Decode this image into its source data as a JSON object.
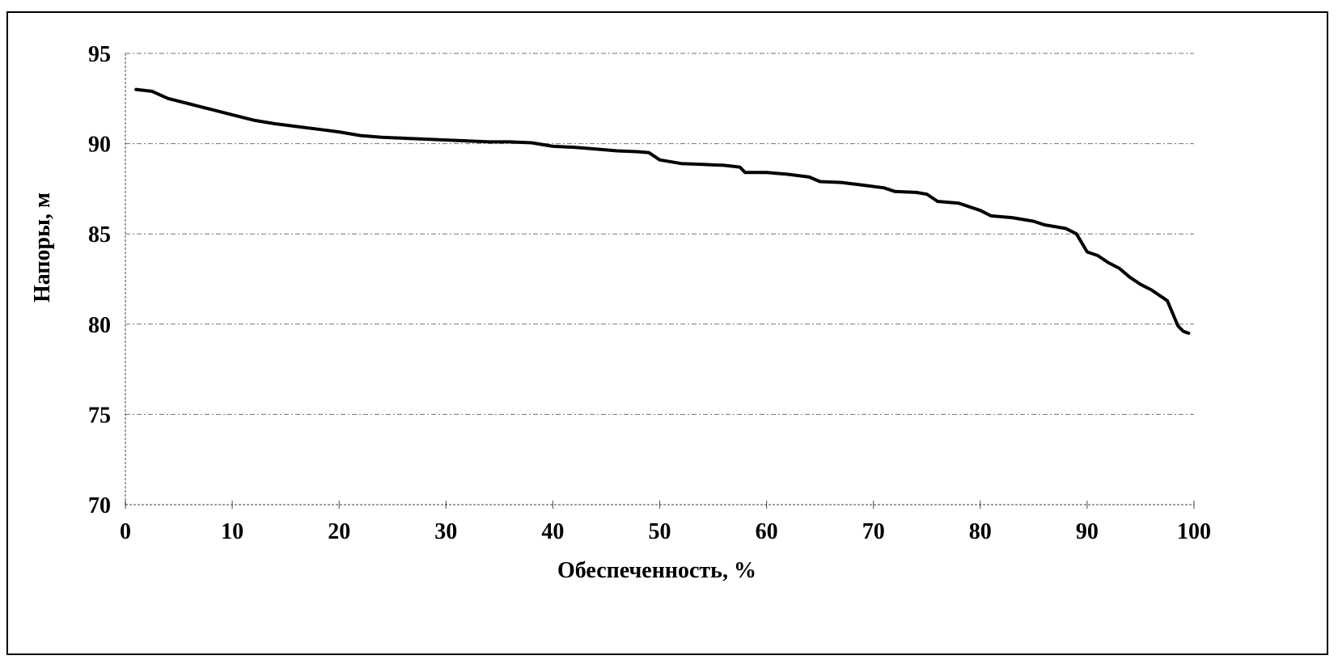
{
  "chart_data": {
    "type": "line",
    "xlabel": "Обеспеченность, %",
    "ylabel": "Напоры, м",
    "xlim": [
      0,
      100
    ],
    "ylim": [
      70,
      95
    ],
    "xticks": [
      0,
      10,
      20,
      30,
      40,
      50,
      60,
      70,
      80,
      90,
      100
    ],
    "yticks": [
      70,
      75,
      80,
      85,
      90,
      95
    ],
    "xtick_labels": [
      "0",
      "10",
      "20",
      "30",
      "40",
      "50",
      "60",
      "70",
      "80",
      "90",
      "100"
    ],
    "ytick_labels": [
      "70",
      "75",
      "80",
      "85",
      "90",
      "95"
    ],
    "grid": true,
    "legend": "none",
    "line_color": "#000000",
    "series": [
      {
        "x": [
          1,
          2.5,
          4,
          6,
          8,
          10,
          12,
          14,
          16,
          18,
          20,
          22,
          24,
          26,
          28,
          30,
          32,
          34,
          36,
          38,
          40,
          42,
          44,
          46,
          48,
          49,
          50,
          52,
          54,
          56,
          57.5,
          58,
          60,
          62,
          64,
          65,
          67,
          69,
          71,
          72,
          74,
          75,
          76,
          78,
          80,
          81,
          83,
          85,
          86,
          88,
          89,
          90,
          91,
          92,
          93,
          94,
          95,
          96,
          97,
          97.5,
          98,
          98.5,
          99,
          99.5
        ],
        "y": [
          93.0,
          92.9,
          92.5,
          92.2,
          91.9,
          91.6,
          91.3,
          91.1,
          90.95,
          90.8,
          90.65,
          90.45,
          90.35,
          90.3,
          90.25,
          90.2,
          90.15,
          90.1,
          90.1,
          90.05,
          89.85,
          89.8,
          89.7,
          89.6,
          89.55,
          89.5,
          89.1,
          88.9,
          88.85,
          88.8,
          88.7,
          88.4,
          88.4,
          88.3,
          88.15,
          87.9,
          87.85,
          87.7,
          87.55,
          87.35,
          87.3,
          87.2,
          86.8,
          86.7,
          86.3,
          86.0,
          85.9,
          85.7,
          85.5,
          85.3,
          85.0,
          84.0,
          83.8,
          83.4,
          83.1,
          82.6,
          82.2,
          81.9,
          81.5,
          81.3,
          80.6,
          79.9,
          79.6,
          79.5
        ]
      }
    ]
  }
}
